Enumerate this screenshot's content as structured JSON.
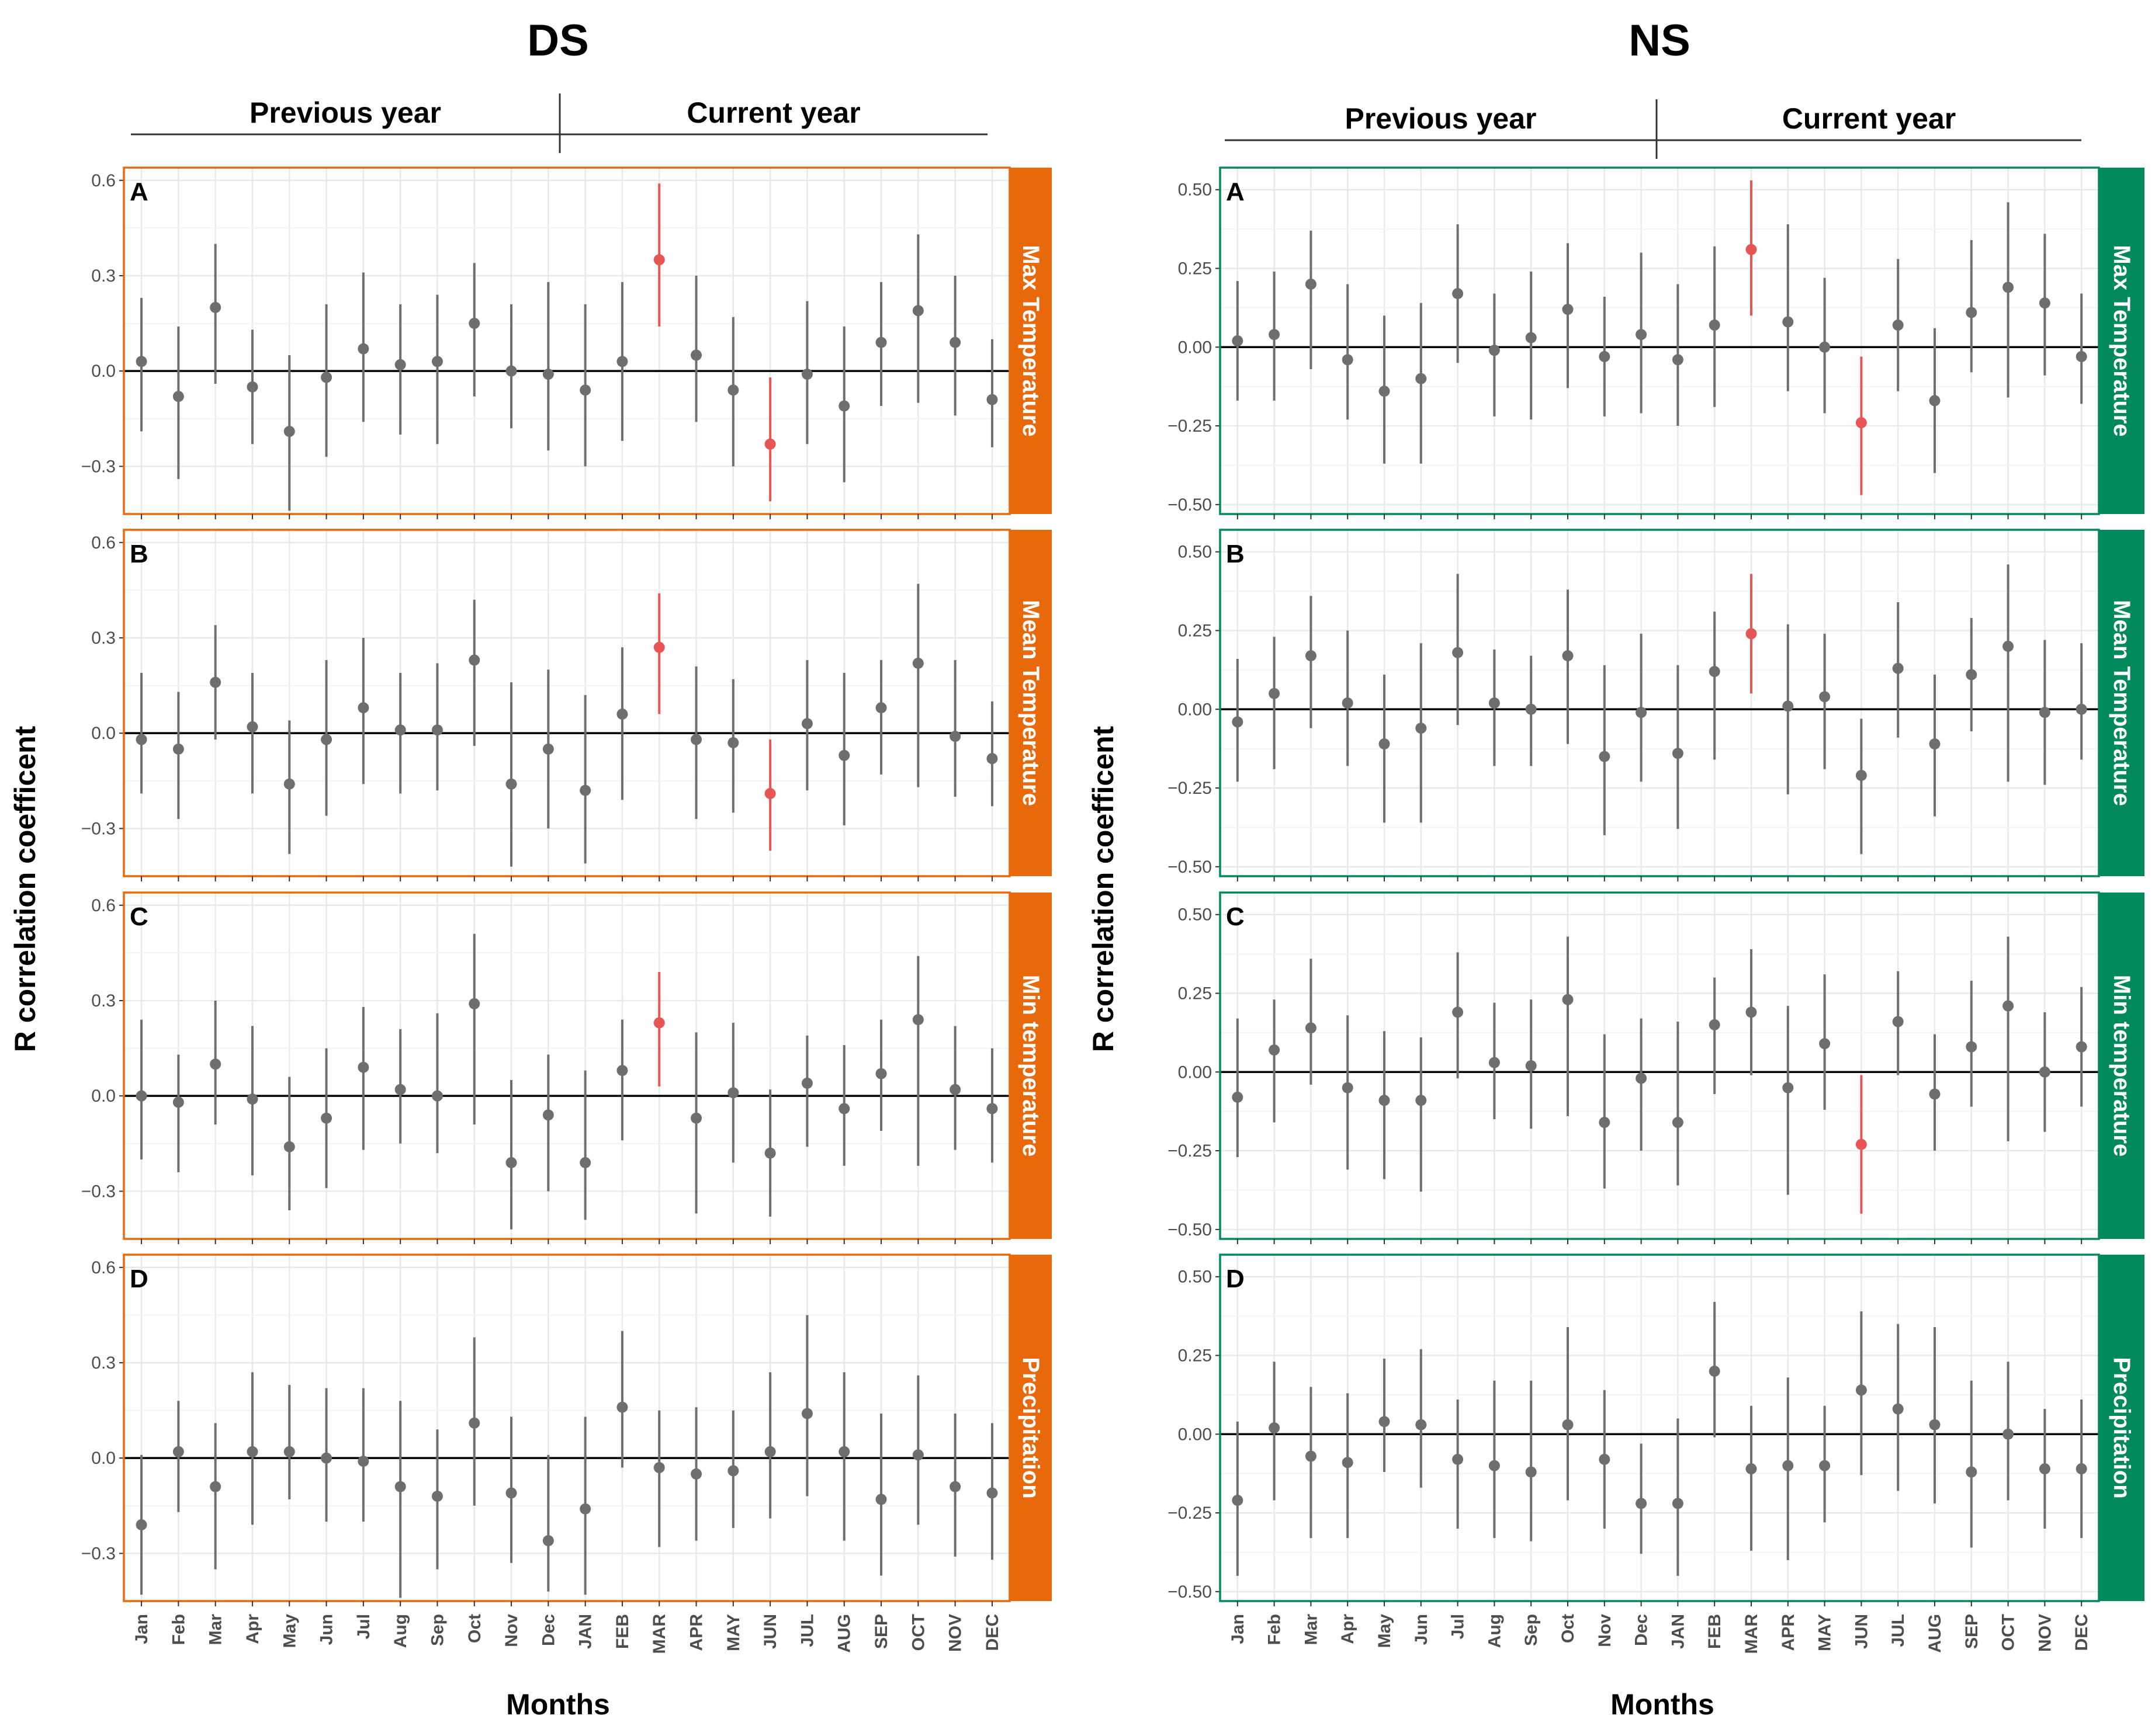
{
  "colors": {
    "ds_accent": "#E8690B",
    "ns_accent": "#00895A",
    "point": "#6E6E6E",
    "significant": "#E85555",
    "grid": "#E9E9E9"
  },
  "chart_data": [
    {
      "type": "scatter",
      "site": "DS",
      "title": "DS",
      "period_labels": [
        "Previous year",
        "Current year"
      ],
      "xlabel": "Months",
      "ylabel": "R correlation coefficent",
      "categories": [
        "Jan",
        "Feb",
        "Mar",
        "Apr",
        "May",
        "Jun",
        "Jul",
        "Aug",
        "Sep",
        "Oct",
        "Nov",
        "Dec",
        "JAN",
        "FEB",
        "MAR",
        "APR",
        "MAY",
        "JUN",
        "JUL",
        "AUG",
        "SEP",
        "OCT",
        "NOV",
        "DEC"
      ],
      "ylim": [
        -0.45,
        0.64
      ],
      "yticks": [
        0.6,
        0.3,
        0.0,
        -0.3
      ],
      "ytick_labels": [
        "0.6",
        "0.3",
        "0.0",
        "−0.3"
      ],
      "panels": [
        {
          "letter": "A",
          "variable": "Max Temperature",
          "values": [
            0.03,
            -0.08,
            0.2,
            -0.05,
            -0.19,
            -0.02,
            0.07,
            0.02,
            0.03,
            0.15,
            0.0,
            -0.01,
            -0.06,
            0.03,
            0.35,
            0.05,
            -0.06,
            -0.23,
            -0.01,
            -0.11,
            0.09,
            0.19,
            0.09,
            -0.09
          ],
          "lower": [
            -0.19,
            -0.34,
            -0.04,
            -0.23,
            -0.44,
            -0.27,
            -0.16,
            -0.2,
            -0.23,
            -0.08,
            -0.18,
            -0.25,
            -0.3,
            -0.22,
            0.14,
            -0.16,
            -0.3,
            -0.41,
            -0.23,
            -0.35,
            -0.11,
            -0.1,
            -0.14,
            -0.24
          ],
          "upper": [
            0.23,
            0.14,
            0.4,
            0.13,
            0.05,
            0.21,
            0.31,
            0.21,
            0.24,
            0.34,
            0.21,
            0.28,
            0.21,
            0.28,
            0.59,
            0.3,
            0.17,
            -0.02,
            0.22,
            0.14,
            0.28,
            0.43,
            0.3,
            0.1
          ],
          "significant": [
            false,
            false,
            false,
            false,
            false,
            false,
            false,
            false,
            false,
            false,
            false,
            false,
            false,
            false,
            true,
            false,
            false,
            true,
            false,
            false,
            false,
            false,
            false,
            false
          ]
        },
        {
          "letter": "B",
          "variable": "Mean Temperature",
          "values": [
            -0.02,
            -0.05,
            0.16,
            0.02,
            -0.16,
            -0.02,
            0.08,
            0.01,
            0.01,
            0.23,
            -0.16,
            -0.05,
            -0.18,
            0.06,
            0.27,
            -0.02,
            -0.03,
            -0.19,
            0.03,
            -0.07,
            0.08,
            0.22,
            -0.01,
            -0.08
          ],
          "lower": [
            -0.19,
            -0.27,
            -0.02,
            -0.19,
            -0.38,
            -0.26,
            -0.16,
            -0.19,
            -0.18,
            -0.04,
            -0.42,
            -0.3,
            -0.41,
            -0.21,
            0.06,
            -0.27,
            -0.25,
            -0.37,
            -0.18,
            -0.29,
            -0.13,
            -0.17,
            -0.2,
            -0.23
          ],
          "upper": [
            0.19,
            0.13,
            0.34,
            0.19,
            0.04,
            0.23,
            0.3,
            0.19,
            0.22,
            0.42,
            0.16,
            0.2,
            0.12,
            0.27,
            0.44,
            0.21,
            0.17,
            -0.02,
            0.23,
            0.19,
            0.23,
            0.47,
            0.23,
            0.1
          ],
          "significant": [
            false,
            false,
            false,
            false,
            false,
            false,
            false,
            false,
            false,
            false,
            false,
            false,
            false,
            false,
            true,
            false,
            false,
            true,
            false,
            false,
            false,
            false,
            false,
            false
          ]
        },
        {
          "letter": "C",
          "variable": "Min temperature",
          "values": [
            0.0,
            -0.02,
            0.1,
            -0.01,
            -0.16,
            -0.07,
            0.09,
            0.02,
            0.0,
            0.29,
            -0.21,
            -0.06,
            -0.21,
            0.08,
            0.23,
            -0.07,
            0.01,
            -0.18,
            0.04,
            -0.04,
            0.07,
            0.24,
            0.02,
            -0.04
          ],
          "lower": [
            -0.2,
            -0.24,
            -0.09,
            -0.25,
            -0.36,
            -0.29,
            -0.17,
            -0.15,
            -0.18,
            -0.09,
            -0.42,
            -0.3,
            -0.39,
            -0.14,
            0.03,
            -0.37,
            -0.21,
            -0.38,
            -0.16,
            -0.22,
            -0.11,
            -0.22,
            -0.17,
            -0.21
          ],
          "upper": [
            0.24,
            0.13,
            0.3,
            0.22,
            0.06,
            0.15,
            0.28,
            0.21,
            0.26,
            0.51,
            0.05,
            0.13,
            0.08,
            0.24,
            0.39,
            0.2,
            0.23,
            0.02,
            0.19,
            0.16,
            0.24,
            0.44,
            0.22,
            0.15
          ],
          "significant": [
            false,
            false,
            false,
            false,
            false,
            false,
            false,
            false,
            false,
            false,
            false,
            false,
            false,
            false,
            true,
            false,
            false,
            false,
            false,
            false,
            false,
            false,
            false,
            false
          ]
        },
        {
          "letter": "D",
          "variable": "Precipitation",
          "values": [
            -0.21,
            0.02,
            -0.09,
            0.02,
            0.02,
            0.0,
            -0.01,
            -0.09,
            -0.12,
            0.11,
            -0.11,
            -0.26,
            -0.16,
            0.16,
            -0.03,
            -0.05,
            -0.04,
            0.02,
            0.14,
            0.02,
            -0.13,
            0.01,
            -0.09,
            -0.11
          ],
          "lower": [
            -0.43,
            -0.17,
            -0.35,
            -0.21,
            -0.13,
            -0.2,
            -0.2,
            -0.44,
            -0.35,
            -0.15,
            -0.33,
            -0.42,
            -0.43,
            -0.03,
            -0.28,
            -0.26,
            -0.22,
            -0.19,
            -0.12,
            -0.26,
            -0.37,
            -0.21,
            -0.31,
            -0.32
          ],
          "upper": [
            0.01,
            0.18,
            0.11,
            0.27,
            0.23,
            0.22,
            0.22,
            0.18,
            0.09,
            0.38,
            0.13,
            0.01,
            0.13,
            0.4,
            0.15,
            0.16,
            0.15,
            0.27,
            0.45,
            0.27,
            0.14,
            0.26,
            0.14,
            0.11
          ],
          "significant": [
            false,
            false,
            false,
            false,
            false,
            false,
            false,
            false,
            false,
            false,
            false,
            false,
            false,
            false,
            false,
            false,
            false,
            false,
            false,
            false,
            false,
            false,
            false,
            false
          ]
        }
      ]
    },
    {
      "type": "scatter",
      "site": "NS",
      "title": "NS",
      "period_labels": [
        "Previous year",
        "Current year"
      ],
      "xlabel": "Months",
      "ylabel": "R correlation coefficent",
      "categories": [
        "Jan",
        "Feb",
        "Mar",
        "Apr",
        "May",
        "Jun",
        "Jul",
        "Aug",
        "Sep",
        "Oct",
        "Nov",
        "Dec",
        "JAN",
        "FEB",
        "MAR",
        "APR",
        "MAY",
        "JUN",
        "JUL",
        "AUG",
        "SEP",
        "OCT",
        "NOV",
        "DEC"
      ],
      "ylim": [
        -0.53,
        0.57
      ],
      "yticks": [
        0.5,
        0.25,
        0.0,
        -0.25,
        -0.5
      ],
      "ytick_labels": [
        "0.50",
        "0.25",
        "0.00",
        "−0.25",
        "−0.50"
      ],
      "panels": [
        {
          "letter": "A",
          "variable": "Max Temperature",
          "values": [
            0.02,
            0.04,
            0.2,
            -0.04,
            -0.14,
            -0.1,
            0.17,
            -0.01,
            0.03,
            0.12,
            -0.03,
            0.04,
            -0.04,
            0.07,
            0.31,
            0.08,
            0.0,
            -0.24,
            0.07,
            -0.17,
            0.11,
            0.19,
            0.14,
            -0.03
          ],
          "lower": [
            -0.17,
            -0.17,
            -0.07,
            -0.23,
            -0.37,
            -0.37,
            -0.05,
            -0.22,
            -0.23,
            -0.13,
            -0.22,
            -0.21,
            -0.25,
            -0.19,
            0.1,
            -0.14,
            -0.21,
            -0.47,
            -0.14,
            -0.4,
            -0.08,
            -0.16,
            -0.09,
            -0.18
          ],
          "upper": [
            0.21,
            0.24,
            0.37,
            0.2,
            0.1,
            0.14,
            0.39,
            0.17,
            0.24,
            0.33,
            0.16,
            0.3,
            0.2,
            0.32,
            0.53,
            0.39,
            0.22,
            -0.03,
            0.28,
            0.06,
            0.34,
            0.46,
            0.36,
            0.17
          ],
          "significant": [
            false,
            false,
            false,
            false,
            false,
            false,
            false,
            false,
            false,
            false,
            false,
            false,
            false,
            false,
            true,
            false,
            false,
            true,
            false,
            false,
            false,
            false,
            false,
            false
          ]
        },
        {
          "letter": "B",
          "variable": "Mean Temperature",
          "values": [
            -0.04,
            0.05,
            0.17,
            0.02,
            -0.11,
            -0.06,
            0.18,
            0.02,
            0.0,
            0.17,
            -0.15,
            -0.01,
            -0.14,
            0.12,
            0.24,
            0.01,
            0.04,
            -0.21,
            0.13,
            -0.11,
            0.11,
            0.2,
            -0.01,
            0.0
          ],
          "lower": [
            -0.23,
            -0.19,
            -0.06,
            -0.18,
            -0.36,
            -0.36,
            -0.05,
            -0.18,
            -0.18,
            -0.11,
            -0.4,
            -0.23,
            -0.38,
            -0.16,
            0.05,
            -0.27,
            -0.19,
            -0.46,
            -0.09,
            -0.34,
            -0.07,
            -0.23,
            -0.24,
            -0.16
          ],
          "upper": [
            0.16,
            0.23,
            0.36,
            0.25,
            0.11,
            0.21,
            0.43,
            0.19,
            0.17,
            0.38,
            0.14,
            0.24,
            0.14,
            0.31,
            0.43,
            0.27,
            0.24,
            -0.03,
            0.34,
            0.11,
            0.29,
            0.46,
            0.22,
            0.21
          ],
          "significant": [
            false,
            false,
            false,
            false,
            false,
            false,
            false,
            false,
            false,
            false,
            false,
            false,
            false,
            false,
            true,
            false,
            false,
            false,
            false,
            false,
            false,
            false,
            false,
            false
          ]
        },
        {
          "letter": "C",
          "variable": "Min temperature",
          "values": [
            -0.08,
            0.07,
            0.14,
            -0.05,
            -0.09,
            -0.09,
            0.19,
            0.03,
            0.02,
            0.23,
            -0.16,
            -0.02,
            -0.16,
            0.15,
            0.19,
            -0.05,
            0.09,
            -0.23,
            0.16,
            -0.07,
            0.08,
            0.21,
            0.0,
            0.08
          ],
          "lower": [
            -0.27,
            -0.16,
            -0.04,
            -0.31,
            -0.34,
            -0.38,
            -0.02,
            -0.15,
            -0.18,
            -0.14,
            -0.37,
            -0.25,
            -0.36,
            -0.07,
            -0.01,
            -0.39,
            -0.12,
            -0.45,
            -0.01,
            -0.25,
            -0.11,
            -0.22,
            -0.19,
            -0.11
          ],
          "upper": [
            0.17,
            0.23,
            0.36,
            0.18,
            0.13,
            0.11,
            0.38,
            0.22,
            0.23,
            0.43,
            0.12,
            0.17,
            0.16,
            0.3,
            0.39,
            0.21,
            0.31,
            -0.01,
            0.32,
            0.12,
            0.29,
            0.43,
            0.19,
            0.27
          ],
          "significant": [
            false,
            false,
            false,
            false,
            false,
            false,
            false,
            false,
            false,
            false,
            false,
            false,
            false,
            false,
            false,
            false,
            false,
            true,
            false,
            false,
            false,
            false,
            false,
            false
          ]
        },
        {
          "letter": "D",
          "variable": "Precipitation",
          "values": [
            -0.21,
            0.02,
            -0.07,
            -0.09,
            0.04,
            0.03,
            -0.08,
            -0.1,
            -0.12,
            0.03,
            -0.08,
            -0.22,
            -0.22,
            0.2,
            -0.11,
            -0.1,
            -0.1,
            0.14,
            0.08,
            0.03,
            -0.12,
            0.0,
            -0.11,
            -0.11
          ],
          "lower": [
            -0.45,
            -0.21,
            -0.33,
            -0.33,
            -0.12,
            -0.17,
            -0.3,
            -0.33,
            -0.34,
            -0.21,
            -0.3,
            -0.38,
            -0.45,
            -0.01,
            -0.37,
            -0.4,
            -0.28,
            -0.13,
            -0.18,
            -0.22,
            -0.36,
            -0.21,
            -0.3,
            -0.33
          ],
          "upper": [
            0.04,
            0.23,
            0.15,
            0.13,
            0.24,
            0.27,
            0.11,
            0.17,
            0.17,
            0.34,
            0.14,
            -0.03,
            0.05,
            0.42,
            0.09,
            0.18,
            0.09,
            0.39,
            0.35,
            0.34,
            0.17,
            0.23,
            0.08,
            0.11
          ],
          "significant": [
            false,
            false,
            false,
            false,
            false,
            false,
            false,
            false,
            false,
            false,
            false,
            false,
            false,
            false,
            false,
            false,
            false,
            false,
            false,
            false,
            false,
            false,
            false,
            false
          ]
        }
      ]
    }
  ]
}
